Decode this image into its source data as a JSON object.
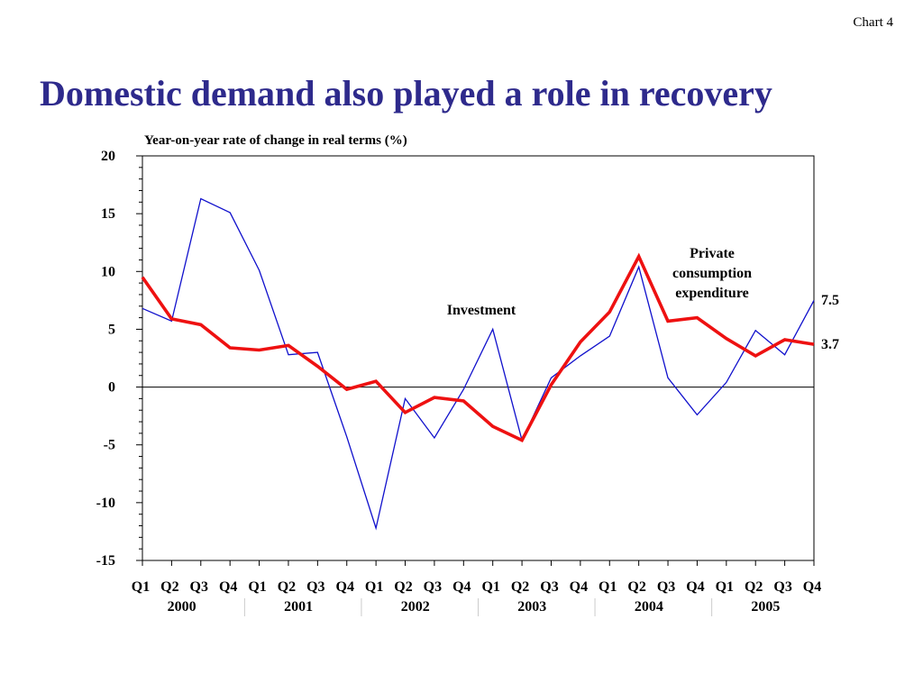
{
  "header": {
    "chart_number": "Chart 4",
    "title": "Domestic demand also played a role in recovery"
  },
  "chart_data": {
    "type": "line",
    "title": "Domestic demand also played a role in recovery",
    "subtitle": "Year-on-year rate of change in real terms (%)",
    "xlabel": "",
    "ylabel": "",
    "ylim": [
      -15,
      20
    ],
    "yticks": [
      "20",
      "15",
      "10",
      "5",
      "0",
      "-5",
      "-10",
      "-15"
    ],
    "ytick_values": [
      20,
      15,
      10,
      5,
      0,
      -5,
      -10,
      -15
    ],
    "categories": [
      "Q1",
      "Q2",
      "Q3",
      "Q4",
      "Q1",
      "Q2",
      "Q3",
      "Q4",
      "Q1",
      "Q2",
      "Q3",
      "Q4",
      "Q1",
      "Q2",
      "Q3",
      "Q4",
      "Q1",
      "Q2",
      "Q3",
      "Q4",
      "Q1",
      "Q2",
      "Q3",
      "Q4"
    ],
    "years": [
      "2000",
      "2001",
      "2002",
      "2003",
      "2004",
      "2005"
    ],
    "grid": false,
    "series": [
      {
        "name": "Investment",
        "color": "#1010cc",
        "values": [
          6.8,
          5.7,
          16.3,
          15.1,
          10.1,
          2.8,
          3.0,
          -4.3,
          -12.2,
          -1.0,
          -4.4,
          -0.2,
          5.0,
          -4.6,
          0.8,
          2.7,
          4.4,
          10.4,
          0.8,
          -2.4,
          0.4,
          4.9,
          2.8,
          7.5
        ]
      },
      {
        "name": "Private consumption expenditure",
        "color": "#ee1111",
        "values": [
          9.5,
          5.9,
          5.4,
          3.4,
          3.2,
          3.6,
          1.8,
          -0.2,
          0.5,
          -2.2,
          -0.9,
          -1.2,
          -3.4,
          -4.6,
          0.2,
          3.9,
          6.5,
          11.3,
          5.7,
          6.0,
          4.2,
          2.7,
          4.1,
          3.7
        ]
      }
    ],
    "annotations": {
      "investment_label": "Investment",
      "consumption_label_lines": [
        "Private",
        "consumption",
        "expenditure"
      ],
      "investment_end_value": "7.5",
      "consumption_end_value": "3.7"
    }
  }
}
